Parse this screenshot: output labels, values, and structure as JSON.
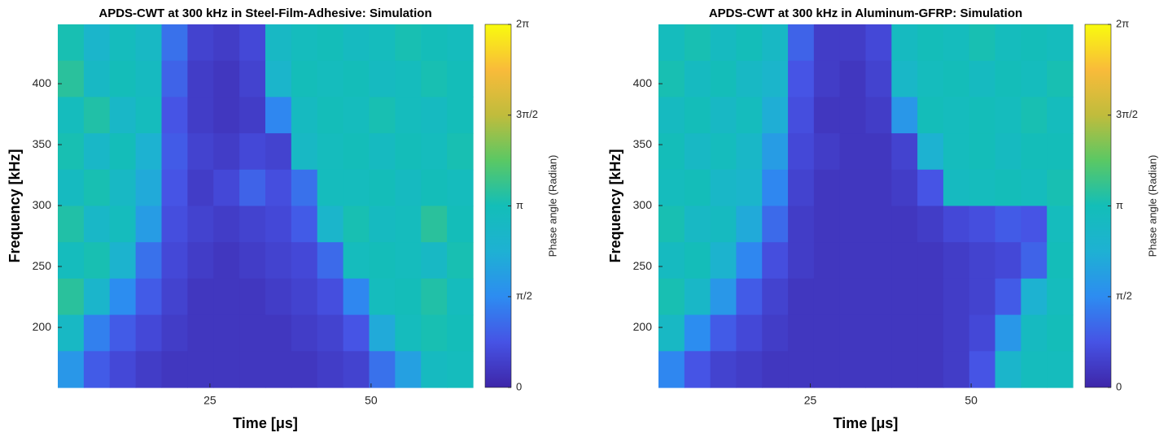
{
  "chart_data": [
    {
      "type": "heatmap",
      "title": "APDS-CWT at 300 kHz in Steel-Film-Adhesive: Simulation",
      "x_label": "Time [μs]",
      "y_label": "Frequency [kHz]",
      "xlim": [
        1.4,
        65.8
      ],
      "ylim": [
        150.7,
        448.7
      ],
      "xticks": [
        25,
        50
      ],
      "yticks": [
        200,
        250,
        300,
        350,
        400
      ],
      "clim": [
        0,
        6.2832
      ],
      "cticks": [
        0,
        {
          "value": 1.5708,
          "label": "π/2"
        },
        {
          "value": 3.1416,
          "label": "π"
        },
        {
          "value": 4.7124,
          "label": "3π/2"
        },
        {
          "value": 6.2832,
          "label": "2π"
        }
      ],
      "colorbar_label": "Phase angle (Radian)",
      "colormap": [
        "#3e26a8",
        "#4653e5",
        "#2d8cf1",
        "#1eb1d3",
        "#13beb8",
        "#5ac864",
        "#c0bc3c",
        "#f9bb3a",
        "#f9fb0e"
      ],
      "z": [
        [
          3.2,
          2.6,
          3.0,
          2.8,
          1.2,
          0.5,
          0.4,
          0.6,
          2.8,
          3.0,
          3.1,
          2.9,
          3.0,
          3.2,
          3.1,
          3.0
        ],
        [
          3.4,
          2.8,
          3.1,
          2.9,
          1.0,
          0.4,
          0.3,
          0.5,
          2.6,
          3.1,
          3.0,
          3.1,
          2.9,
          3.0,
          3.2,
          3.1
        ],
        [
          3.0,
          3.3,
          2.7,
          3.0,
          0.8,
          0.4,
          0.3,
          0.4,
          1.5,
          2.9,
          3.1,
          3.0,
          3.2,
          3.0,
          2.9,
          3.1
        ],
        [
          3.2,
          2.7,
          3.1,
          2.4,
          0.9,
          0.5,
          0.4,
          0.6,
          0.5,
          2.8,
          3.0,
          3.1,
          2.9,
          3.1,
          3.0,
          3.2
        ],
        [
          2.9,
          3.2,
          2.8,
          2.2,
          0.8,
          0.4,
          0.6,
          1.0,
          0.7,
          1.2,
          3.0,
          3.0,
          3.1,
          2.9,
          3.1,
          3.0
        ],
        [
          3.3,
          2.7,
          3.0,
          1.9,
          0.7,
          0.5,
          0.4,
          0.5,
          0.6,
          0.9,
          2.6,
          3.2,
          2.9,
          3.0,
          3.4,
          3.1
        ],
        [
          3.0,
          3.2,
          2.5,
          1.2,
          0.6,
          0.4,
          0.3,
          0.4,
          0.5,
          0.6,
          1.1,
          3.0,
          3.1,
          3.0,
          2.8,
          3.2
        ],
        [
          3.4,
          2.6,
          1.6,
          0.9,
          0.5,
          0.3,
          0.3,
          0.3,
          0.4,
          0.5,
          0.7,
          1.5,
          3.0,
          3.1,
          3.3,
          3.0
        ],
        [
          2.8,
          1.4,
          0.9,
          0.6,
          0.4,
          0.3,
          0.3,
          0.3,
          0.3,
          0.4,
          0.5,
          0.8,
          2.2,
          3.0,
          3.2,
          3.1
        ],
        [
          1.8,
          0.9,
          0.6,
          0.4,
          0.3,
          0.3,
          0.3,
          0.3,
          0.3,
          0.3,
          0.4,
          0.5,
          1.2,
          2.0,
          2.9,
          3.0
        ]
      ]
    },
    {
      "type": "heatmap",
      "title": "APDS-CWT at 300 kHz in Aluminum-GFRP: Simulation",
      "x_label": "Time [μs]",
      "y_label": "Frequency [kHz]",
      "xlim": [
        1.4,
        65.8
      ],
      "ylim": [
        150.7,
        448.7
      ],
      "xticks": [
        25,
        50
      ],
      "yticks": [
        200,
        250,
        300,
        350,
        400
      ],
      "clim": [
        0,
        6.2832
      ],
      "cticks": [
        0,
        {
          "value": 1.5708,
          "label": "π/2"
        },
        {
          "value": 3.1416,
          "label": "π"
        },
        {
          "value": 4.7124,
          "label": "3π/2"
        },
        {
          "value": 6.2832,
          "label": "2π"
        }
      ],
      "colorbar_label": "Phase angle (Radian)",
      "colormap": [
        "#3e26a8",
        "#4653e5",
        "#2d8cf1",
        "#1eb1d3",
        "#13beb8",
        "#5ac864",
        "#c0bc3c",
        "#f9bb3a",
        "#f9fb0e"
      ],
      "z": [
        [
          3.0,
          3.2,
          2.9,
          3.1,
          2.8,
          1.0,
          0.4,
          0.4,
          0.6,
          2.9,
          3.1,
          3.0,
          3.2,
          3.0,
          3.1,
          3.0
        ],
        [
          3.2,
          2.9,
          3.1,
          2.8,
          2.6,
          0.8,
          0.4,
          0.3,
          0.5,
          2.7,
          3.0,
          3.1,
          2.9,
          3.1,
          3.0,
          3.2
        ],
        [
          2.9,
          3.1,
          2.8,
          3.0,
          2.3,
          0.7,
          0.3,
          0.3,
          0.4,
          1.8,
          3.1,
          3.0,
          3.1,
          3.0,
          3.2,
          3.0
        ],
        [
          3.1,
          2.8,
          3.0,
          2.7,
          1.9,
          0.6,
          0.4,
          0.3,
          0.3,
          0.5,
          2.4,
          3.0,
          3.1,
          2.9,
          3.1,
          3.1
        ],
        [
          3.0,
          3.1,
          2.7,
          2.6,
          1.5,
          0.5,
          0.3,
          0.3,
          0.3,
          0.4,
          0.8,
          2.9,
          3.0,
          3.1,
          3.0,
          3.2
        ],
        [
          3.2,
          2.8,
          2.9,
          2.2,
          1.1,
          0.4,
          0.3,
          0.3,
          0.3,
          0.3,
          0.4,
          0.6,
          0.7,
          0.9,
          0.8,
          3.0
        ],
        [
          2.9,
          3.1,
          2.5,
          1.5,
          0.7,
          0.4,
          0.3,
          0.3,
          0.3,
          0.3,
          0.3,
          0.4,
          0.5,
          0.6,
          1.0,
          3.1
        ],
        [
          3.2,
          2.7,
          1.8,
          0.9,
          0.5,
          0.3,
          0.3,
          0.3,
          0.3,
          0.3,
          0.3,
          0.4,
          0.5,
          0.9,
          2.4,
          3.0
        ],
        [
          2.8,
          1.6,
          0.9,
          0.6,
          0.4,
          0.3,
          0.3,
          0.3,
          0.3,
          0.3,
          0.3,
          0.4,
          0.6,
          1.8,
          2.9,
          3.1
        ],
        [
          1.5,
          0.8,
          0.5,
          0.4,
          0.3,
          0.3,
          0.3,
          0.3,
          0.3,
          0.3,
          0.3,
          0.4,
          0.8,
          2.6,
          3.0,
          3.0
        ]
      ]
    }
  ]
}
